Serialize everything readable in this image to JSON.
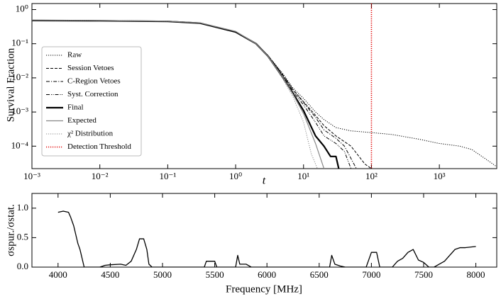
{
  "chart_data": [
    {
      "type": "line",
      "xscale": "log",
      "yscale": "log",
      "xlabel": "t",
      "ylabel": "Survival Fraction",
      "xlim": [
        0.001,
        7000
      ],
      "ylim": [
        2.2e-05,
        1.5
      ],
      "xticks": [
        {
          "value": 0.001,
          "label": "10⁻³"
        },
        {
          "value": 0.01,
          "label": "10⁻²"
        },
        {
          "value": 0.1,
          "label": "10⁻¹"
        },
        {
          "value": 1,
          "label": "10⁰"
        },
        {
          "value": 10,
          "label": "10¹"
        },
        {
          "value": 100,
          "label": "10²"
        },
        {
          "value": 1000,
          "label": "10³"
        }
      ],
      "yticks": [
        {
          "value": 0.0001,
          "label": "10⁻⁴"
        },
        {
          "value": 0.001,
          "label": "10⁻³"
        },
        {
          "value": 0.01,
          "label": "10⁻²"
        },
        {
          "value": 0.1,
          "label": "10⁻¹"
        },
        {
          "value": 1,
          "label": "10⁰"
        }
      ],
      "legend": "lower left",
      "series": [
        {
          "name": "Raw",
          "color": "#000000",
          "linestyle": "dotted",
          "linewidth": 1,
          "x": [
            0.001,
            0.01,
            0.1,
            0.3,
            1,
            2,
            3,
            5,
            7,
            10,
            15,
            20,
            30,
            50,
            100,
            200,
            500,
            1000,
            2000,
            3000,
            5000,
            7000
          ],
          "values": [
            0.48,
            0.47,
            0.45,
            0.4,
            0.22,
            0.1,
            0.045,
            0.013,
            0.005,
            0.0025,
            0.001,
            0.0006,
            0.00035,
            0.00028,
            0.00025,
            0.00022,
            0.00016,
            0.00012,
            0.0001,
            8e-05,
            4e-05,
            2.5e-05
          ]
        },
        {
          "name": "Session Vetoes",
          "color": "#000000",
          "linestyle": "dashed",
          "linewidth": 1,
          "x": [
            0.001,
            0.01,
            0.1,
            0.3,
            1,
            2,
            3,
            5,
            7,
            10,
            15,
            20,
            30,
            50,
            80,
            100
          ],
          "values": [
            0.48,
            0.47,
            0.45,
            0.4,
            0.22,
            0.1,
            0.045,
            0.012,
            0.0045,
            0.002,
            0.0008,
            0.0004,
            0.0002,
            0.0001,
            3e-05,
            2.2e-05
          ]
        },
        {
          "name": "C-Region Vetoes",
          "color": "#000000",
          "linestyle": "dashdot",
          "linewidth": 1,
          "x": [
            0.001,
            0.01,
            0.1,
            0.3,
            1,
            2,
            3,
            5,
            7,
            10,
            15,
            20,
            30,
            40,
            60
          ],
          "values": [
            0.48,
            0.47,
            0.45,
            0.4,
            0.22,
            0.1,
            0.045,
            0.012,
            0.0045,
            0.0019,
            0.0007,
            0.0003,
            0.00017,
            0.0001,
            2.2e-05
          ]
        },
        {
          "name": "Syst. Correction",
          "color": "#000000",
          "linestyle": "dashdotdot",
          "linewidth": 1,
          "x": [
            0.001,
            0.01,
            0.1,
            0.3,
            1,
            2,
            3,
            5,
            7,
            10,
            15,
            20,
            30,
            40,
            50
          ],
          "values": [
            0.48,
            0.47,
            0.45,
            0.4,
            0.22,
            0.1,
            0.044,
            0.011,
            0.004,
            0.0016,
            0.0005,
            0.0002,
            0.00012,
            7e-05,
            2.2e-05
          ]
        },
        {
          "name": "Final",
          "color": "#000000",
          "linestyle": "solid",
          "linewidth": 2.2,
          "x": [
            0.001,
            0.01,
            0.1,
            0.3,
            1,
            2,
            3,
            5,
            7,
            10,
            15,
            20,
            25,
            30,
            33
          ],
          "values": [
            0.48,
            0.47,
            0.45,
            0.4,
            0.22,
            0.1,
            0.043,
            0.01,
            0.0035,
            0.0011,
            0.0002,
            0.0001,
            5e-05,
            5e-05,
            2.2e-05
          ]
        },
        {
          "name": "Expected",
          "color": "#888888",
          "linestyle": "solid",
          "linewidth": 1.2,
          "x": [
            0.001,
            0.01,
            0.1,
            0.3,
            1,
            2,
            3,
            5,
            7,
            10,
            15,
            20
          ],
          "values": [
            0.49,
            0.48,
            0.46,
            0.41,
            0.23,
            0.1,
            0.043,
            0.01,
            0.0033,
            0.0009,
            0.00012,
            2.2e-05
          ]
        },
        {
          "name": "χ² Distribution",
          "color": "#888888",
          "linestyle": "dotted",
          "linewidth": 1,
          "x": [
            0.001,
            0.01,
            0.1,
            0.3,
            1,
            2,
            3,
            5,
            7,
            10,
            13,
            16
          ],
          "values": [
            0.49,
            0.48,
            0.46,
            0.41,
            0.23,
            0.1,
            0.042,
            0.009,
            0.0028,
            0.0005,
            6e-05,
            2.2e-05
          ]
        },
        {
          "name": "Detection Threshold",
          "color": "#e00000",
          "linestyle": "dotted",
          "linewidth": 1.6,
          "vline": 100
        }
      ]
    },
    {
      "type": "line",
      "xlabel": "Frequency [MHz]",
      "ylabel": "σspur./σstat.",
      "xlim": [
        3750,
        8200
      ],
      "ylim": [
        0,
        1.25
      ],
      "xticks": [
        4000,
        4500,
        5000,
        5500,
        6000,
        6500,
        7000,
        7500,
        8000
      ],
      "yticks": [
        {
          "value": 0,
          "label": "0.0"
        },
        {
          "value": 0.5,
          "label": "0.5"
        },
        {
          "value": 1,
          "label": "1.0"
        }
      ],
      "series": [
        {
          "color": "#000000",
          "linestyle": "solid",
          "linewidth": 1.3,
          "x": [
            4000,
            4050,
            4100,
            4120,
            4150,
            4170,
            4190,
            4210,
            4230,
            4250,
            4400,
            4450,
            4500,
            4600,
            4650,
            4700,
            4750,
            4780,
            4820,
            4850,
            4870,
            4900,
            5400,
            5420,
            5500,
            5520,
            5700,
            5720,
            5740,
            5800,
            5850,
            6600,
            6620,
            6650,
            6700,
            6750,
            6950,
            7000,
            7050,
            7080,
            7200,
            7250,
            7300,
            7350,
            7400,
            7450,
            7500,
            7550,
            7600,
            7650,
            7700,
            7750,
            7800,
            7850,
            7900,
            8000
          ],
          "values": [
            0.93,
            0.95,
            0.93,
            0.85,
            0.7,
            0.55,
            0.4,
            0.3,
            0.15,
            0,
            0,
            0.03,
            0.04,
            0.05,
            0.03,
            0.1,
            0.3,
            0.48,
            0.48,
            0.3,
            0.05,
            0,
            0,
            0.1,
            0.1,
            0,
            0,
            0.2,
            0.05,
            0.05,
            0,
            0,
            0.2,
            0.05,
            0.02,
            0,
            0,
            0.25,
            0.25,
            0,
            0,
            0.1,
            0.15,
            0.25,
            0.3,
            0.12,
            0.08,
            0,
            0,
            0.05,
            0.1,
            0.2,
            0.3,
            0.33,
            0.33,
            0.35
          ]
        }
      ]
    }
  ]
}
